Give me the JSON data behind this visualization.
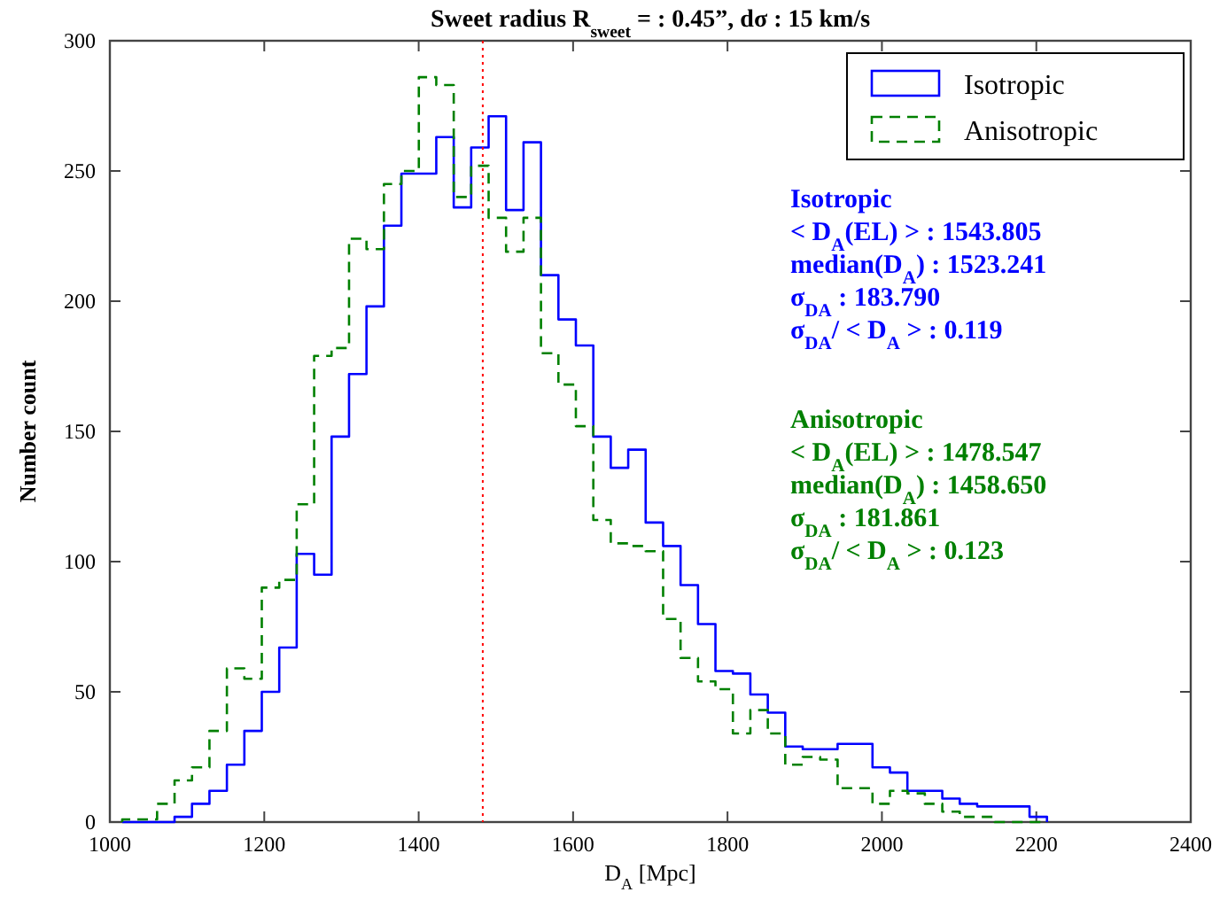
{
  "chart_data": {
    "type": "histogram",
    "title": "Sweet radius R$_{sweet}$ = : 0.45”, dσ : 15 km/s",
    "xlabel": "D$_{A}$ [Mpc]",
    "ylabel": "Number count",
    "xlim": [
      1000,
      2400
    ],
    "xticks": [
      1000,
      1200,
      1400,
      1600,
      1800,
      2000,
      2200,
      2400
    ],
    "ylim": [
      0,
      300
    ],
    "yticks": [
      0,
      50,
      100,
      150,
      200,
      250,
      300
    ],
    "legend": "top right",
    "bins": [
      1016,
      1038.6,
      1061.2,
      1083.8,
      1106.4,
      1129,
      1151.6,
      1174.2,
      1196.8,
      1219.4,
      1242,
      1264.6,
      1287.2,
      1309.8,
      1332.4,
      1355,
      1377.6,
      1400.2,
      1422.8,
      1445.4,
      1468,
      1490.6,
      1513.2,
      1535.8,
      1558.4,
      1581,
      1603.6,
      1626.2,
      1648.8,
      1671.4,
      1694,
      1716.6,
      1739.2,
      1761.8,
      1784.4,
      1807,
      1829.6,
      1852.2,
      1874.8,
      1897.4,
      1920,
      1942.6,
      1965.2,
      1987.8,
      2010.4,
      2033,
      2055.6,
      2078.2,
      2100.8,
      2123.4,
      2146,
      2168.6,
      2191.2,
      2213.8
    ],
    "series": [
      {
        "name": "Isotropic",
        "color": "#0000ff",
        "line_style": "solid",
        "values": [
          0,
          0,
          0,
          2,
          7,
          12,
          22,
          35,
          50,
          67,
          103,
          95,
          148,
          172,
          198,
          229,
          249,
          249,
          263,
          236,
          259,
          271,
          235,
          261,
          210,
          193,
          183,
          148,
          136,
          143,
          115,
          106,
          91,
          76,
          58,
          57,
          49,
          42,
          29,
          28,
          28,
          30,
          30,
          21,
          19,
          12,
          12,
          9,
          7,
          6,
          6,
          6,
          2
        ]
      },
      {
        "name": "Anisotropic",
        "color": "#008000",
        "line_style": "dashed",
        "values": [
          1,
          1,
          7,
          16,
          21,
          35,
          59,
          55,
          90,
          93,
          122,
          179,
          182,
          224,
          220,
          245,
          250,
          286,
          283,
          240,
          252,
          232,
          219,
          232,
          180,
          168,
          152,
          116,
          107,
          106,
          104,
          78,
          63,
          54,
          51,
          34,
          43,
          34,
          22,
          25,
          24,
          13,
          13,
          7,
          12,
          11,
          7,
          4,
          2,
          2,
          0,
          0,
          0
        ]
      }
    ],
    "ref_lines": [
      {
        "axis": "x",
        "value": 1483,
        "color": "#ff0000",
        "line_style": "dotted"
      }
    ],
    "annotations": [
      "Isotropic",
      "< D$_{A}$(EL) > : 1543.805",
      "median(D$_{A}$) : 1523.241",
      "σ$_{DA}$ : 183.790",
      "σ$_{DA}$/ < D$_{A}$ > : 0.119",
      "Anisotropic",
      "< D$_{A}$(EL) > : 1478.547",
      "median(D$_{A}$) : 1458.650",
      "σ$_{DA}$ : 181.861",
      "σ$_{DA}$/ < D$_{A}$ > : 0.123"
    ]
  }
}
